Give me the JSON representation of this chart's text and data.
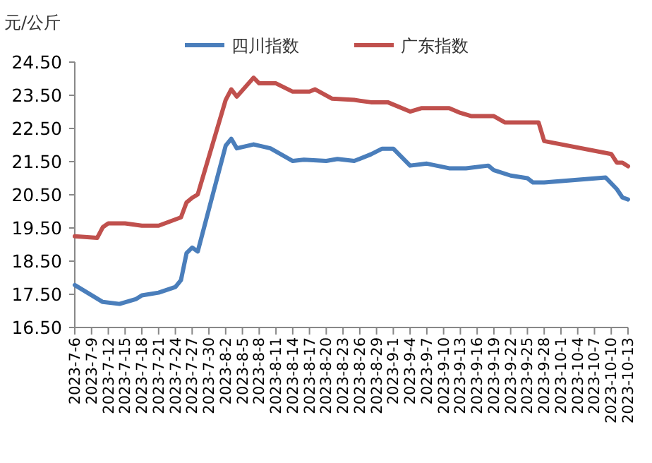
{
  "chart_data": {
    "type": "line",
    "ylabel": "元/公斤",
    "legend": "top",
    "ylim": [
      16.5,
      24.5
    ],
    "yticks": [
      {
        "value": 16.5,
        "label": "16.50"
      },
      {
        "value": 17.5,
        "label": "17.50"
      },
      {
        "value": 18.5,
        "label": "18.50"
      },
      {
        "value": 19.5,
        "label": "19.50"
      },
      {
        "value": 20.5,
        "label": "20.50"
      },
      {
        "value": 21.5,
        "label": "21.50"
      },
      {
        "value": 22.5,
        "label": "22.50"
      },
      {
        "value": 23.5,
        "label": "23.50"
      },
      {
        "value": 24.5,
        "label": "24.50"
      }
    ],
    "xlim": [
      "2023-07-06",
      "2023-10-13"
    ],
    "xticks": [
      {
        "value": "2023-07-06",
        "label": "2023-7-6"
      },
      {
        "value": "2023-07-09",
        "label": "2023-7-9"
      },
      {
        "value": "2023-07-12",
        "label": "2023-7-12"
      },
      {
        "value": "2023-07-15",
        "label": "2023-7-15"
      },
      {
        "value": "2023-07-18",
        "label": "2023-7-18"
      },
      {
        "value": "2023-07-21",
        "label": "2023-7-21"
      },
      {
        "value": "2023-07-24",
        "label": "2023-7-24"
      },
      {
        "value": "2023-07-27",
        "label": "2023-7-27"
      },
      {
        "value": "2023-07-30",
        "label": "2023-7-30"
      },
      {
        "value": "2023-08-02",
        "label": "2023-8-2"
      },
      {
        "value": "2023-08-05",
        "label": "2023-8-5"
      },
      {
        "value": "2023-08-08",
        "label": "2023-8-8"
      },
      {
        "value": "2023-08-11",
        "label": "2023-8-11"
      },
      {
        "value": "2023-08-14",
        "label": "2023-8-14"
      },
      {
        "value": "2023-08-17",
        "label": "2023-8-17"
      },
      {
        "value": "2023-08-20",
        "label": "2023-8-20"
      },
      {
        "value": "2023-08-23",
        "label": "2023-8-23"
      },
      {
        "value": "2023-08-26",
        "label": "2023-8-26"
      },
      {
        "value": "2023-08-29",
        "label": "2023-8-29"
      },
      {
        "value": "2023-09-01",
        "label": "2023-9-1"
      },
      {
        "value": "2023-09-04",
        "label": "2023-9-4"
      },
      {
        "value": "2023-09-07",
        "label": "2023-9-7"
      },
      {
        "value": "2023-09-10",
        "label": "2023-9-10"
      },
      {
        "value": "2023-09-13",
        "label": "2023-9-13"
      },
      {
        "value": "2023-09-16",
        "label": "2023-9-16"
      },
      {
        "value": "2023-09-19",
        "label": "2023-9-19"
      },
      {
        "value": "2023-09-22",
        "label": "2023-9-22"
      },
      {
        "value": "2023-09-25",
        "label": "2023-9-25"
      },
      {
        "value": "2023-09-28",
        "label": "2023-9-28"
      },
      {
        "value": "2023-10-01",
        "label": "2023-10-1"
      },
      {
        "value": "2023-10-04",
        "label": "2023-10-4"
      },
      {
        "value": "2023-10-07",
        "label": "2023-10-7"
      },
      {
        "value": "2023-10-10",
        "label": "2023-10-10"
      },
      {
        "value": "2023-10-13",
        "label": "2023-10-13"
      }
    ],
    "series": [
      {
        "name": "四川指数",
        "color": "#4a7ebb",
        "x": [
          "2023-07-06",
          "2023-07-11",
          "2023-07-14",
          "2023-07-17",
          "2023-07-18",
          "2023-07-21",
          "2023-07-24",
          "2023-07-25",
          "2023-07-26",
          "2023-07-27",
          "2023-07-28",
          "2023-08-02",
          "2023-08-03",
          "2023-08-04",
          "2023-08-07",
          "2023-08-10",
          "2023-08-14",
          "2023-08-16",
          "2023-08-20",
          "2023-08-22",
          "2023-08-25",
          "2023-08-28",
          "2023-08-30",
          "2023-09-01",
          "2023-09-04",
          "2023-09-07",
          "2023-09-11",
          "2023-09-14",
          "2023-09-18",
          "2023-09-19",
          "2023-09-22",
          "2023-09-25",
          "2023-09-26",
          "2023-09-28",
          "2023-10-09",
          "2023-10-11",
          "2023-10-12",
          "2023-10-13"
        ],
        "values": [
          17.78,
          17.27,
          17.21,
          17.36,
          17.47,
          17.55,
          17.72,
          17.93,
          18.74,
          18.91,
          18.79,
          21.98,
          22.19,
          21.9,
          22.02,
          21.9,
          21.52,
          21.56,
          21.52,
          21.58,
          21.52,
          21.72,
          21.89,
          21.89,
          21.38,
          21.44,
          21.3,
          21.3,
          21.38,
          21.24,
          21.08,
          21.0,
          20.87,
          20.87,
          21.02,
          20.67,
          20.42,
          20.36
        ]
      },
      {
        "name": "广东指数",
        "color": "#c0504d",
        "x": [
          "2023-07-06",
          "2023-07-10",
          "2023-07-11",
          "2023-07-12",
          "2023-07-15",
          "2023-07-18",
          "2023-07-21",
          "2023-07-25",
          "2023-07-26",
          "2023-07-27",
          "2023-07-28",
          "2023-08-02",
          "2023-08-03",
          "2023-08-04",
          "2023-08-07",
          "2023-08-08",
          "2023-08-11",
          "2023-08-14",
          "2023-08-17",
          "2023-08-18",
          "2023-08-21",
          "2023-08-25",
          "2023-08-28",
          "2023-08-31",
          "2023-09-04",
          "2023-09-06",
          "2023-09-11",
          "2023-09-13",
          "2023-09-15",
          "2023-09-19",
          "2023-09-21",
          "2023-09-27",
          "2023-09-28",
          "2023-10-10",
          "2023-10-11",
          "2023-10-12",
          "2023-10-13"
        ],
        "values": [
          19.25,
          19.2,
          19.52,
          19.64,
          19.64,
          19.57,
          19.57,
          19.82,
          20.27,
          20.41,
          20.51,
          23.36,
          23.68,
          23.46,
          24.03,
          23.86,
          23.86,
          23.61,
          23.61,
          23.68,
          23.4,
          23.36,
          23.29,
          23.29,
          23.01,
          23.11,
          23.11,
          22.97,
          22.87,
          22.87,
          22.68,
          22.68,
          22.12,
          21.73,
          21.47,
          21.47,
          21.36
        ]
      }
    ]
  }
}
